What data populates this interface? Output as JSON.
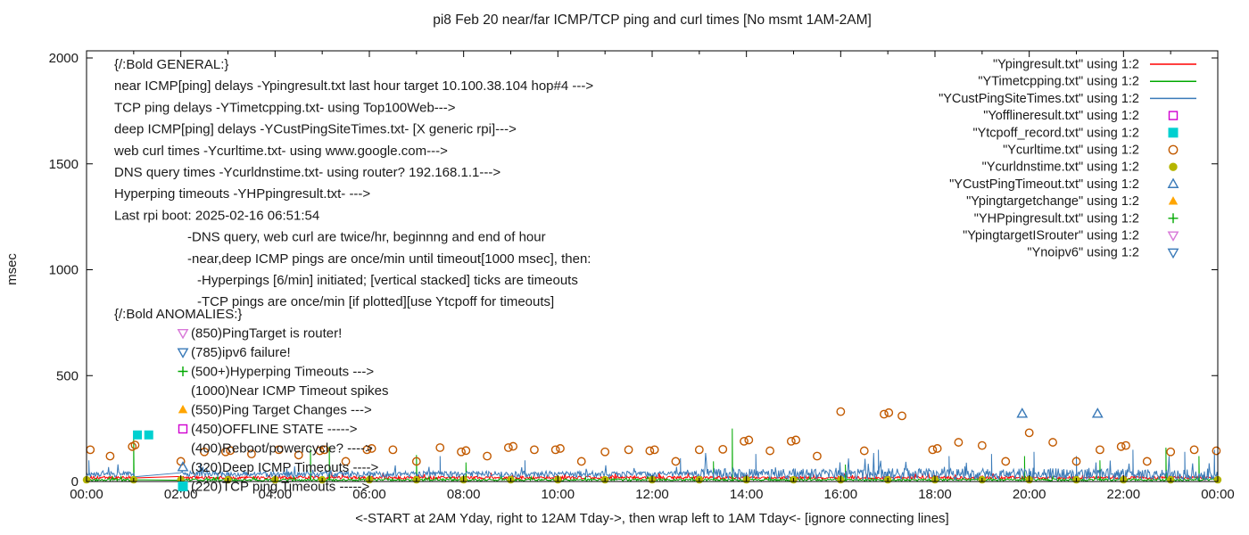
{
  "chart_data": {
    "type": "line+scatter",
    "title": "pi8 Feb 20  near/far ICMP/TCP ping and curl times [No msmt 1AM-2AM]",
    "xlabel": "<-START at 2AM Yday, right to 12AM Tday->, then wrap left to 1AM Tday<- [ignore connecting lines]",
    "ylabel": "msec",
    "ylim": [
      0,
      2000
    ],
    "xlim_hours": [
      0,
      24
    ],
    "y_ticks": [
      0,
      500,
      1000,
      1500,
      2000
    ],
    "x_ticks": [
      "00:00",
      "02:00",
      "04:00",
      "06:00",
      "08:00",
      "10:00",
      "12:00",
      "14:00",
      "16:00",
      "18:00",
      "20:00",
      "22:00",
      "00:00"
    ],
    "legend_position": "top-right-inside",
    "grid": false,
    "series": [
      {
        "name": "\"Ypingresult.txt\" using 1:2",
        "file": "Ypingresult",
        "type": "line",
        "color": "#ff0000",
        "baseline": 18,
        "noise": 7,
        "gap": [
          1.03,
          2.0
        ],
        "spikes": []
      },
      {
        "name": "\"YTimetcpping.txt\" using 1:2",
        "file": "YTimetcpping",
        "type": "line",
        "color": "#00a800",
        "baseline": 8,
        "noise": 5,
        "gap": [
          1.03,
          2.05
        ],
        "spikes": [
          [
            1.0,
            220
          ],
          [
            4.75,
            155
          ],
          [
            5.15,
            165
          ],
          [
            7.0,
            125
          ],
          [
            8.05,
            90
          ],
          [
            13.3,
            95
          ],
          [
            13.7,
            250
          ],
          [
            16.1,
            80
          ],
          [
            19.9,
            120
          ],
          [
            21.5,
            100
          ],
          [
            22.9,
            160
          ],
          [
            23.6,
            120
          ]
        ]
      },
      {
        "name": "\"YCustPingSiteTimes.txt\" using 1:2",
        "file": "YCustPingSiteTimes",
        "type": "line",
        "color": "#3a7ab8",
        "baseline": 35,
        "noise": 14,
        "noise_late": 27,
        "gap": [
          1.03,
          2.0
        ],
        "spikes": [
          [
            0.05,
            100
          ],
          [
            7.5,
            120
          ],
          [
            9.3,
            100
          ],
          [
            12.6,
            110
          ],
          [
            14.2,
            130
          ],
          [
            16.8,
            150
          ],
          [
            18.3,
            120
          ],
          [
            19.2,
            130
          ],
          [
            20.1,
            140
          ],
          [
            21.0,
            120
          ],
          [
            22.2,
            150
          ],
          [
            23.3,
            140
          ],
          [
            23.93,
            150
          ]
        ]
      },
      {
        "name": "\"Yofflineresult.txt\" using 1:2",
        "file": "Yofflineresult",
        "type": "points",
        "marker": "square-open",
        "color": "#d000d0",
        "points": []
      },
      {
        "name": "\"Ytcpoff_record.txt\" using 1:2",
        "file": "Ytcpoff_record",
        "type": "points",
        "marker": "square-filled",
        "color": "#00d0d0",
        "points": [
          [
            1.08,
            220
          ],
          [
            1.32,
            220
          ]
        ]
      },
      {
        "name": "\"Ycurltime.txt\" using 1:2",
        "file": "Ycurltime",
        "type": "points",
        "marker": "circle-open",
        "color": "#c25a00",
        "points": [
          [
            0.08,
            150
          ],
          [
            0.5,
            120
          ],
          [
            0.97,
            165
          ],
          [
            1.03,
            172
          ],
          [
            2.0,
            95
          ],
          [
            2.5,
            140
          ],
          [
            2.95,
            140
          ],
          [
            3.05,
            146
          ],
          [
            3.5,
            130
          ],
          [
            4.08,
            150
          ],
          [
            4.5,
            125
          ],
          [
            4.95,
            145
          ],
          [
            5.05,
            150
          ],
          [
            5.5,
            95
          ],
          [
            5.95,
            150
          ],
          [
            6.05,
            156
          ],
          [
            6.5,
            150
          ],
          [
            7.0,
            95
          ],
          [
            7.5,
            160
          ],
          [
            7.95,
            140
          ],
          [
            8.05,
            146
          ],
          [
            8.5,
            120
          ],
          [
            8.95,
            160
          ],
          [
            9.05,
            166
          ],
          [
            9.5,
            150
          ],
          [
            9.95,
            150
          ],
          [
            10.05,
            156
          ],
          [
            10.5,
            95
          ],
          [
            11.0,
            140
          ],
          [
            11.5,
            150
          ],
          [
            11.95,
            145
          ],
          [
            12.05,
            150
          ],
          [
            12.5,
            95
          ],
          [
            13.0,
            150
          ],
          [
            13.5,
            152
          ],
          [
            13.95,
            190
          ],
          [
            14.05,
            196
          ],
          [
            14.5,
            145
          ],
          [
            14.95,
            190
          ],
          [
            15.05,
            196
          ],
          [
            15.5,
            120
          ],
          [
            16.0,
            330
          ],
          [
            16.5,
            145
          ],
          [
            16.92,
            318
          ],
          [
            17.02,
            325
          ],
          [
            17.3,
            310
          ],
          [
            17.95,
            150
          ],
          [
            18.05,
            156
          ],
          [
            18.5,
            185
          ],
          [
            19.0,
            170
          ],
          [
            19.5,
            95
          ],
          [
            20.0,
            230
          ],
          [
            20.5,
            185
          ],
          [
            21.0,
            95
          ],
          [
            21.5,
            150
          ],
          [
            21.95,
            165
          ],
          [
            22.05,
            170
          ],
          [
            22.5,
            95
          ],
          [
            23.0,
            140
          ],
          [
            23.5,
            150
          ],
          [
            23.97,
            145
          ]
        ]
      },
      {
        "name": "\"Ycurldnstime.txt\" using 1:2",
        "file": "Ycurldnstime",
        "type": "points",
        "marker": "circle-filled",
        "color": "#b5b500",
        "points": [
          [
            0,
            8
          ],
          [
            1,
            8
          ],
          [
            2,
            8
          ],
          [
            3,
            8
          ],
          [
            4,
            8
          ],
          [
            5,
            8
          ],
          [
            6,
            8
          ],
          [
            7,
            8
          ],
          [
            8,
            8
          ],
          [
            9,
            8
          ],
          [
            10,
            8
          ],
          [
            11,
            8
          ],
          [
            12,
            8
          ],
          [
            13,
            8
          ],
          [
            14,
            8
          ],
          [
            15,
            8
          ],
          [
            16,
            8
          ],
          [
            17,
            8
          ],
          [
            18,
            8
          ],
          [
            19,
            8
          ],
          [
            20,
            8
          ],
          [
            21,
            8
          ],
          [
            22,
            8
          ],
          [
            23,
            8
          ],
          [
            24,
            8
          ]
        ]
      },
      {
        "name": "\"YCustPingTimeout.txt\" using 1:2",
        "file": "YCustPingTimeout",
        "type": "points",
        "marker": "triangle-open",
        "color": "#3a7ab8",
        "points": [
          [
            19.85,
            320
          ],
          [
            21.45,
            320
          ]
        ]
      },
      {
        "name": "\"Ypingtargetchange\" using 1:2",
        "file": "Ypingtargetchange",
        "type": "points",
        "marker": "triangle-filled",
        "color": "#ffa500",
        "points": []
      },
      {
        "name": "\"YHPpingresult.txt\" using 1:2",
        "file": "YHPpingresult",
        "type": "points",
        "marker": "plus",
        "color": "#00a800",
        "points": []
      },
      {
        "name": "\"YpingtargetISrouter\" using 1:2",
        "file": "YpingtargetISrouter",
        "type": "points",
        "marker": "triangle-down-open",
        "color": "#d878d8",
        "points": []
      },
      {
        "name": "\"Ynoipv6\" using 1:2",
        "file": "Ynoipv6",
        "type": "points",
        "marker": "triangle-down-open",
        "color": "#3a7ab8",
        "points": []
      }
    ]
  },
  "annotations": {
    "general": [
      {
        "indent": 0,
        "text": "{/:Bold GENERAL:}"
      },
      {
        "indent": 0,
        "text": "near ICMP[ping] delays -Ypingresult.txt last hour target 10.100.38.104 hop#4 --->"
      },
      {
        "indent": 0,
        "text": "TCP ping delays -YTimetcpping.txt- using Top100Web--->"
      },
      {
        "indent": 0,
        "text": "deep ICMP[ping] delays -YCustPingSiteTimes.txt- [X generic rpi]--->"
      },
      {
        "indent": 0,
        "text": "web curl times -Ycurltime.txt- using www.google.com--->"
      },
      {
        "indent": 0,
        "text": "DNS query times -Ycurldnstime.txt- using router? 192.168.1.1--->"
      },
      {
        "indent": 0,
        "text": "Hyperping timeouts -YHPpingresult.txt- --->"
      },
      {
        "indent": 0,
        "text": "Last rpi boot: 2025-02-16 06:51:54"
      },
      {
        "indent": 1,
        "text": "-DNS query, web curl are twice/hr, beginnng and end of hour"
      },
      {
        "indent": 1,
        "text": "-near,deep ICMP pings are once/min until timeout[1000 msec], then:"
      },
      {
        "indent": 2,
        "text": "-Hyperpings [6/min] initiated; [vertical stacked] ticks are timeouts"
      },
      {
        "indent": 2,
        "text": "-TCP pings are once/min [if plotted][use Ytcpoff for timeouts]"
      }
    ],
    "anomalies": [
      {
        "marker": "",
        "color": "",
        "text": "{/:Bold ANOMALIES:}"
      },
      {
        "marker": "triangle-down-open",
        "color": "#d878d8",
        "text": "(850)PingTarget is router!"
      },
      {
        "marker": "triangle-down-open",
        "color": "#3a7ab8",
        "text": "(785)ipv6 failure!"
      },
      {
        "marker": "plus",
        "color": "#00a800",
        "text": "(500+)Hyperping Timeouts --->"
      },
      {
        "marker": "",
        "color": "",
        "text": "(1000)Near ICMP Timeout spikes"
      },
      {
        "marker": "triangle-filled",
        "color": "#ffa500",
        "text": "(550)Ping Target Changes --->"
      },
      {
        "marker": "square-open",
        "color": "#d000d0",
        "text": "(450)OFFLINE STATE ----->"
      },
      {
        "marker": "",
        "color": "",
        "text": "(400)Reboot/powercycle? ---->"
      },
      {
        "marker": "triangle-open",
        "color": "#3a7ab8",
        "text": "(320)Deep ICMP Timeouts ---->"
      },
      {
        "marker": "square-filled",
        "color": "#00d0d0",
        "text": "(220)TCP ping Timeouts ----->"
      }
    ]
  }
}
